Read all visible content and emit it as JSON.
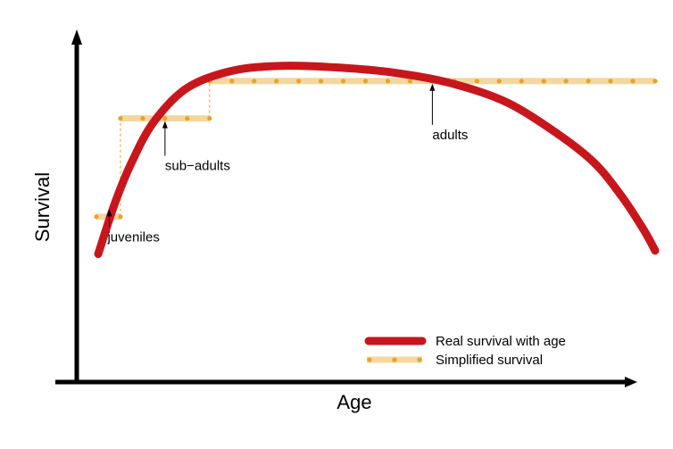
{
  "chart_data": {
    "type": "line",
    "xlabel": "Age",
    "ylabel": "Survival",
    "colors": {
      "real": "#c8161d",
      "simplified_band": "#f4d79e",
      "simplified_dots": "#e8a22c",
      "axis": "#000000"
    },
    "legend_placement": "bottom-right",
    "series": [
      {
        "name": "Real survival with age",
        "style": "thick-solid",
        "points": [
          [
            0.0,
            0.33
          ],
          [
            0.03,
            0.48
          ],
          [
            0.06,
            0.6
          ],
          [
            0.1,
            0.72
          ],
          [
            0.16,
            0.82
          ],
          [
            0.24,
            0.87
          ],
          [
            0.33,
            0.885
          ],
          [
            0.43,
            0.88
          ],
          [
            0.53,
            0.865
          ],
          [
            0.63,
            0.835
          ],
          [
            0.73,
            0.78
          ],
          [
            0.82,
            0.69
          ],
          [
            0.89,
            0.6
          ],
          [
            0.94,
            0.5
          ],
          [
            0.98,
            0.4
          ],
          [
            1.0,
            0.34
          ]
        ]
      },
      {
        "name": "Simplified survival",
        "style": "band-dotted-steps",
        "steps": [
          [
            0.0,
            0.04,
            0.44
          ],
          [
            0.04,
            0.2,
            0.73
          ],
          [
            0.2,
            1.0,
            0.84
          ]
        ]
      }
    ],
    "annotations": [
      {
        "label": "juveniles",
        "target": [
          0.02,
          0.47
        ]
      },
      {
        "label": "sub−adults",
        "target": [
          0.12,
          0.73
        ]
      },
      {
        "label": "adults",
        "target": [
          0.6,
          0.84
        ]
      }
    ]
  }
}
